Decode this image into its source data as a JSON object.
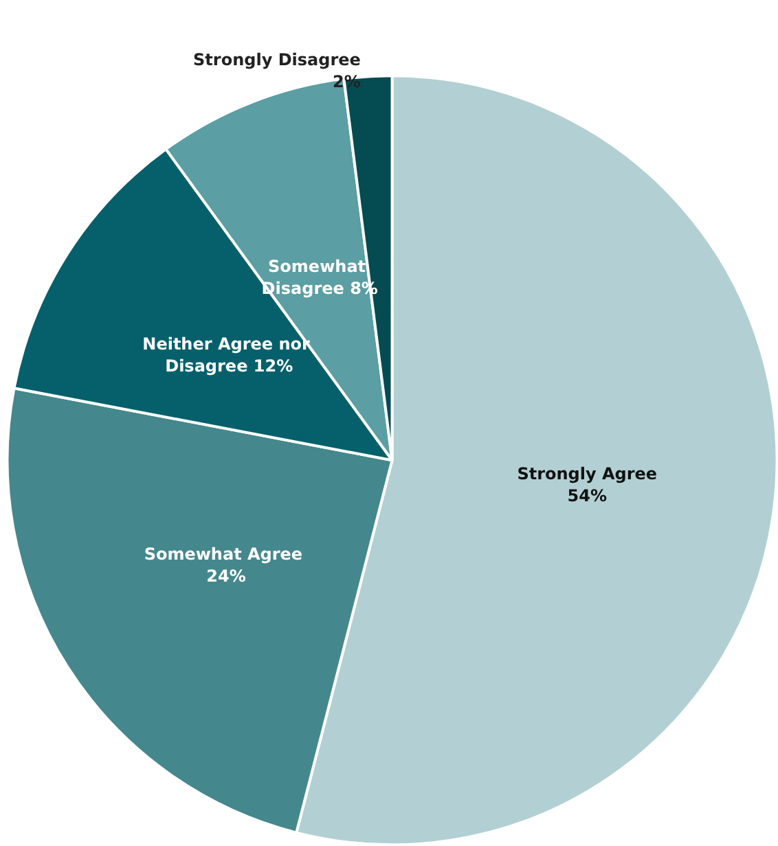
{
  "chart_data": {
    "type": "pie",
    "categories": [
      "Strongly Agree",
      "Somewhat Agree",
      "Neither Agree nor Disagree",
      "Somewhat Disagree",
      "Strongly Disagree"
    ],
    "values": [
      54,
      24,
      12,
      8,
      2
    ],
    "colors": [
      "#b2d0d3",
      "#44888d",
      "#05606b",
      "#5b9ea3",
      "#044b52"
    ],
    "value_labels": [
      "54%",
      "24%",
      "12%",
      "8%",
      "2%"
    ],
    "legend": false
  }
}
